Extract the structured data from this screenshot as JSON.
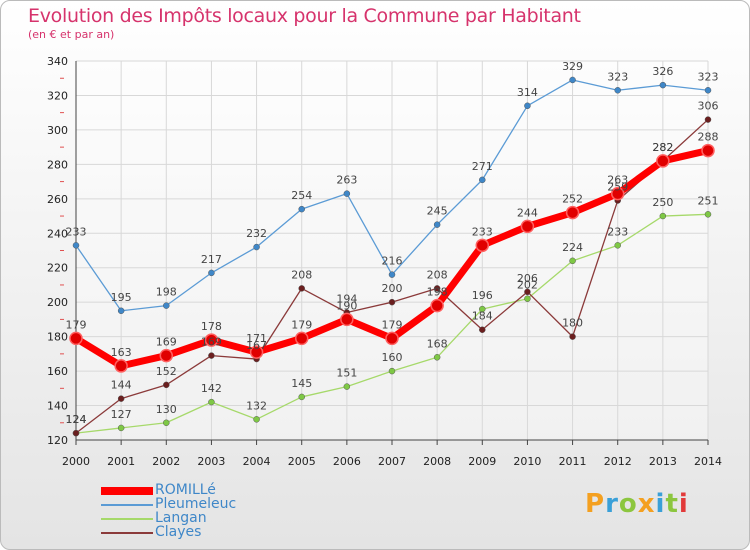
{
  "title": "Evolution des Impôts locaux pour la Commune par Habitant",
  "subtitle": "(en € et par an)",
  "logo": {
    "text": "Proxiti"
  },
  "colors": {
    "title": "#d6336c",
    "logo_letters": [
      "#f4a020",
      "#3aa0d8",
      "#8cc63f",
      "#f4a020",
      "#3aa0d8",
      "#8cc63f",
      "#e23a3a"
    ]
  },
  "chart_data": {
    "type": "line",
    "x": [
      2000,
      2001,
      2002,
      2003,
      2004,
      2005,
      2006,
      2007,
      2008,
      2009,
      2010,
      2011,
      2012,
      2013,
      2014
    ],
    "ylim": [
      120,
      340
    ],
    "yticks": [
      120,
      140,
      160,
      180,
      200,
      220,
      240,
      260,
      280,
      300,
      320,
      340
    ],
    "grid": true,
    "legend_position": "bottom-left",
    "series": [
      {
        "name": "Pleumeleuc",
        "color": "#5b9bd5",
        "fill": "#3f87c8",
        "values": [
          233,
          195,
          198,
          217,
          232,
          254,
          263,
          216,
          245,
          271,
          314,
          329,
          323,
          326,
          323
        ]
      },
      {
        "name": "Langan",
        "color": "#a6d96a",
        "fill": "#7ec845",
        "values": [
          124,
          127,
          130,
          142,
          132,
          145,
          151,
          160,
          168,
          196,
          202,
          224,
          233,
          250,
          251
        ]
      },
      {
        "name": "Clayes",
        "color": "#8b3a3a",
        "fill": "#6b1f1f",
        "values": [
          124,
          144,
          152,
          169,
          167,
          208,
          194,
          200,
          208,
          184,
          206,
          180,
          259,
          282,
          306
        ]
      },
      {
        "name": "ROMILLé",
        "color": "#ff0000",
        "fill": "#e00000",
        "values": [
          179,
          163,
          169,
          178,
          171,
          179,
          190,
          179,
          198,
          233,
          244,
          252,
          263,
          282,
          288
        ]
      }
    ],
    "data_labels": {
      "Pleumeleuc": [
        "233",
        "195",
        "198",
        "217",
        "232",
        "254",
        "263",
        "216",
        "245",
        "271",
        "314",
        "329",
        "323",
        "326",
        "323"
      ],
      "Langan": [
        "124",
        "127",
        "130",
        "142",
        "132",
        "145",
        "151",
        "160",
        "168",
        "196",
        "202",
        "224",
        "233",
        "250",
        "251"
      ],
      "Clayes": [
        "124",
        "144",
        "152",
        "169",
        "167",
        "208",
        "194",
        "200",
        "208",
        "184",
        "206",
        "180",
        "259",
        "282",
        "306"
      ],
      "ROMILLé": [
        "179",
        "163",
        "169",
        "178",
        "171",
        "179",
        "190",
        "179",
        "198",
        "233",
        "244",
        "252",
        "263",
        "282",
        "288"
      ]
    }
  },
  "legend": [
    {
      "label": "ROMILLé",
      "color": "#ff0000"
    },
    {
      "label": "Pleumeleuc",
      "color": "#5b9bd5"
    },
    {
      "label": "Langan",
      "color": "#a6d96a"
    },
    {
      "label": "Clayes",
      "color": "#8b3a3a"
    }
  ]
}
